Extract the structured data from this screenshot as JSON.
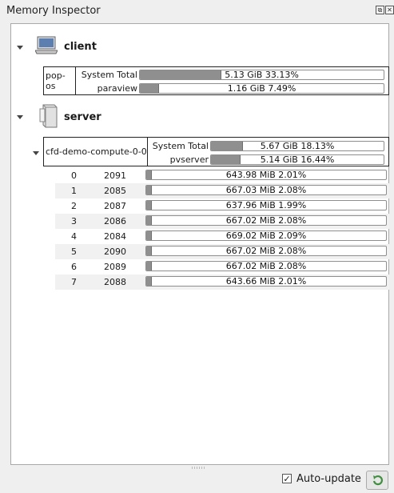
{
  "window": {
    "title": "Memory Inspector"
  },
  "client": {
    "label": "client",
    "host": {
      "name": "pop-os",
      "system_total": {
        "label": "System Total",
        "value": "5.13 GiB 33.13%",
        "fraction": 0.3313
      },
      "process": {
        "label": "paraview",
        "value": "1.16 GiB 7.49%",
        "fraction": 0.0749
      }
    }
  },
  "server": {
    "label": "server",
    "host": {
      "name": "cfd-demo-compute-0-0",
      "system_total": {
        "label": "System Total",
        "value": "5.67 GiB 18.13%",
        "fraction": 0.1813
      },
      "process": {
        "label": "pvserver",
        "value": "5.14 GiB 16.44%",
        "fraction": 0.1644
      }
    },
    "ranks": [
      {
        "rank": "0",
        "pid": "2091",
        "value": "643.98 MiB 2.01%",
        "fraction": 0.0201
      },
      {
        "rank": "1",
        "pid": "2085",
        "value": "667.03 MiB 2.08%",
        "fraction": 0.0208
      },
      {
        "rank": "2",
        "pid": "2087",
        "value": "637.96 MiB 1.99%",
        "fraction": 0.0199
      },
      {
        "rank": "3",
        "pid": "2086",
        "value": "667.02 MiB 2.08%",
        "fraction": 0.0208
      },
      {
        "rank": "4",
        "pid": "2084",
        "value": "669.02 MiB 2.09%",
        "fraction": 0.0209
      },
      {
        "rank": "5",
        "pid": "2090",
        "value": "667.02 MiB 2.08%",
        "fraction": 0.0208
      },
      {
        "rank": "6",
        "pid": "2089",
        "value": "667.02 MiB 2.08%",
        "fraction": 0.0208
      },
      {
        "rank": "7",
        "pid": "2088",
        "value": "643.66 MiB 2.01%",
        "fraction": 0.0201
      }
    ]
  },
  "footer": {
    "auto_update_label": "Auto-update",
    "auto_update_checked": "✓"
  },
  "icons": {
    "client_icon": "laptop-icon",
    "server_icon": "server-tower-icon",
    "refresh_icon": "refresh-icon"
  }
}
